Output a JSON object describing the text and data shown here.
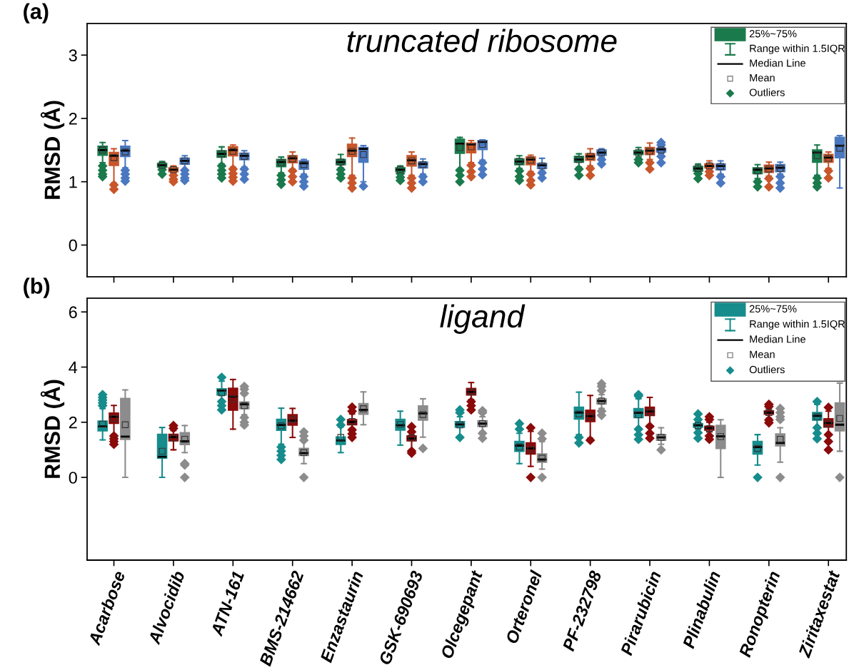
{
  "chart_data": [
    {
      "type": "box",
      "title": "(a)",
      "subtitle": "truncated ribosome",
      "ylabel": "RMSD (Å)",
      "categories": [
        null,
        null,
        null,
        null,
        null,
        null,
        null,
        null,
        null,
        null,
        null,
        null,
        null
      ],
      "ylim": [
        -0.5,
        3.5
      ],
      "yticks": [
        0,
        1,
        2,
        3
      ],
      "tick_labels": "y",
      "marker": "diamond",
      "annotations": [
        "25%~75%",
        "Range within 1.5IQR",
        "Median Line",
        "Mean",
        "Outliers"
      ],
      "series": [
        {
          "color": "#1a7a4c",
          "boxes": [
            {
              "low": 1.3,
              "q1": 1.42,
              "median": 1.5,
              "q3": 1.56,
              "high": 1.62,
              "mean": 1.5,
              "outliers": [
                1.25,
                1.18,
                1.12,
                1.08
              ]
            },
            {
              "low": 1.22,
              "q1": 1.23,
              "median": 1.26,
              "q3": 1.29,
              "high": 1.32,
              "mean": 1.26,
              "outliers": [
                1.19,
                1.12
              ]
            },
            {
              "low": 1.28,
              "q1": 1.39,
              "median": 1.44,
              "q3": 1.49,
              "high": 1.55,
              "mean": 1.44,
              "outliers": [
                1.25,
                1.18,
                1.12,
                1.06
              ]
            },
            {
              "low": 1.14,
              "q1": 1.24,
              "median": 1.31,
              "q3": 1.35,
              "high": 1.39,
              "mean": 1.3,
              "outliers": [
                1.1,
                1.03,
                0.96
              ]
            },
            {
              "low": 1.22,
              "q1": 1.27,
              "median": 1.31,
              "q3": 1.35,
              "high": 1.43,
              "mean": 1.31,
              "outliers": [
                1.19,
                1.12,
                1.06
              ]
            },
            {
              "low": 1.16,
              "q1": 1.16,
              "median": 1.19,
              "q3": 1.22,
              "high": 1.25,
              "mean": 1.19,
              "outliers": [
                1.13,
                1.07,
                1.02
              ]
            },
            {
              "low": 1.2,
              "q1": 1.45,
              "median": 1.6,
              "q3": 1.67,
              "high": 1.7,
              "mean": 1.54,
              "outliers": [
                1.18,
                1.1,
                1.0
              ]
            },
            {
              "low": 1.21,
              "q1": 1.27,
              "median": 1.32,
              "q3": 1.36,
              "high": 1.41,
              "mean": 1.32,
              "outliers": [
                1.17,
                1.08,
                1.02
              ]
            },
            {
              "low": 1.23,
              "q1": 1.31,
              "median": 1.35,
              "q3": 1.4,
              "high": 1.44,
              "mean": 1.35,
              "outliers": [
                1.2,
                1.1
              ]
            },
            {
              "low": 1.39,
              "q1": 1.43,
              "median": 1.46,
              "q3": 1.49,
              "high": 1.54,
              "mean": 1.46,
              "outliers": [
                1.35,
                1.3
              ]
            },
            {
              "low": 1.16,
              "q1": 1.17,
              "median": 1.21,
              "q3": 1.24,
              "high": 1.28,
              "mean": 1.21,
              "outliers": [
                1.13,
                1.05
              ]
            },
            {
              "low": 1.05,
              "q1": 1.13,
              "median": 1.19,
              "q3": 1.22,
              "high": 1.27,
              "mean": 1.17,
              "outliers": [
                1.0,
                0.92
              ]
            },
            {
              "low": 1.1,
              "q1": 1.31,
              "median": 1.46,
              "q3": 1.5,
              "high": 1.58,
              "mean": 1.41,
              "outliers": [
                1.06,
                0.98,
                0.92
              ]
            }
          ]
        },
        {
          "color": "#c8562a",
          "boxes": [
            {
              "low": 0.98,
              "q1": 1.26,
              "median": 1.41,
              "q3": 1.46,
              "high": 1.52,
              "mean": 1.38,
              "outliers": [
                0.95,
                0.88
              ]
            },
            {
              "low": 1.14,
              "q1": 1.16,
              "median": 1.19,
              "q3": 1.22,
              "high": 1.25,
              "mean": 1.19,
              "outliers": [
                1.1,
                1.04,
                1.0
              ]
            },
            {
              "low": 1.23,
              "q1": 1.41,
              "median": 1.5,
              "q3": 1.55,
              "high": 1.58,
              "mean": 1.48,
              "outliers": [
                1.2,
                1.13,
                1.07,
                1.01
              ]
            },
            {
              "low": 1.2,
              "q1": 1.3,
              "median": 1.37,
              "q3": 1.41,
              "high": 1.47,
              "mean": 1.36,
              "outliers": [
                1.17,
                1.08,
                1.0
              ]
            },
            {
              "low": 1.1,
              "q1": 1.4,
              "median": 1.49,
              "q3": 1.59,
              "high": 1.69,
              "mean": 1.48,
              "outliers": [
                1.06,
                0.98,
                0.9
              ]
            },
            {
              "low": 1.1,
              "q1": 1.25,
              "median": 1.34,
              "q3": 1.41,
              "high": 1.47,
              "mean": 1.33,
              "outliers": [
                1.06,
                0.98,
                0.9
              ]
            },
            {
              "low": 1.3,
              "q1": 1.46,
              "median": 1.59,
              "q3": 1.61,
              "high": 1.65,
              "mean": 1.55,
              "outliers": [
                1.26,
                1.16,
                1.08
              ]
            },
            {
              "low": 1.16,
              "q1": 1.27,
              "median": 1.35,
              "q3": 1.39,
              "high": 1.42,
              "mean": 1.34,
              "outliers": [
                1.12,
                1.02,
                0.95
              ]
            },
            {
              "low": 1.25,
              "q1": 1.34,
              "median": 1.4,
              "q3": 1.44,
              "high": 1.52,
              "mean": 1.4,
              "outliers": [
                1.21,
                1.1
              ]
            },
            {
              "low": 1.35,
              "q1": 1.43,
              "median": 1.49,
              "q3": 1.54,
              "high": 1.61,
              "mean": 1.48,
              "outliers": [
                1.3,
                1.2
              ]
            },
            {
              "low": 1.19,
              "q1": 1.22,
              "median": 1.25,
              "q3": 1.28,
              "high": 1.33,
              "mean": 1.25,
              "outliers": [
                1.16,
                1.1
              ]
            },
            {
              "low": 1.09,
              "q1": 1.15,
              "median": 1.21,
              "q3": 1.26,
              "high": 1.31,
              "mean": 1.2,
              "outliers": [
                1.05,
                0.92
              ]
            },
            {
              "low": 1.21,
              "q1": 1.31,
              "median": 1.38,
              "q3": 1.43,
              "high": 1.47,
              "mean": 1.37,
              "outliers": [
                1.17,
                1.06
              ]
            }
          ]
        },
        {
          "color": "#4a78c0",
          "boxes": [
            {
              "low": 1.22,
              "q1": 1.4,
              "median": 1.49,
              "q3": 1.56,
              "high": 1.65,
              "mean": 1.47,
              "outliers": [
                1.18,
                1.12,
                1.06,
                1.01
              ]
            },
            {
              "low": 1.2,
              "q1": 1.28,
              "median": 1.33,
              "q3": 1.37,
              "high": 1.41,
              "mean": 1.33,
              "outliers": [
                1.18,
                1.12,
                1.06,
                1.02
              ]
            },
            {
              "low": 1.23,
              "q1": 1.35,
              "median": 1.41,
              "q3": 1.45,
              "high": 1.49,
              "mean": 1.4,
              "outliers": [
                1.2,
                1.12,
                1.04
              ]
            },
            {
              "low": 1.12,
              "q1": 1.2,
              "median": 1.29,
              "q3": 1.33,
              "high": 1.35,
              "mean": 1.27,
              "outliers": [
                1.08,
                1.0,
                0.93
              ]
            },
            {
              "low": 1.0,
              "q1": 1.31,
              "median": 1.52,
              "q3": 1.54,
              "high": 1.57,
              "mean": 1.43,
              "outliers": [
                0.93
              ]
            },
            {
              "low": 1.12,
              "q1": 1.22,
              "median": 1.28,
              "q3": 1.31,
              "high": 1.36,
              "mean": 1.27,
              "outliers": [
                1.08,
                1.0
              ]
            },
            {
              "low": 1.34,
              "q1": 1.51,
              "median": 1.63,
              "q3": 1.65,
              "high": 1.66,
              "mean": 1.59,
              "outliers": [
                1.3,
                1.2,
                1.11
              ]
            },
            {
              "low": 1.17,
              "q1": 1.21,
              "median": 1.26,
              "q3": 1.29,
              "high": 1.37,
              "mean": 1.25,
              "outliers": [
                1.14,
                1.06
              ]
            },
            {
              "low": 1.39,
              "q1": 1.42,
              "median": 1.46,
              "q3": 1.5,
              "high": 1.52,
              "mean": 1.46,
              "outliers": [
                1.35,
                1.28
              ]
            },
            {
              "low": 1.44,
              "q1": 1.47,
              "median": 1.51,
              "q3": 1.53,
              "high": 1.55,
              "mean": 1.5,
              "outliers": [
                1.62,
                1.58,
                1.4,
                1.3
              ]
            },
            {
              "low": 1.12,
              "q1": 1.19,
              "median": 1.25,
              "q3": 1.28,
              "high": 1.33,
              "mean": 1.24,
              "outliers": [
                1.08,
                0.98
              ]
            },
            {
              "low": 1.12,
              "q1": 1.16,
              "median": 1.22,
              "q3": 1.27,
              "high": 1.31,
              "mean": 1.21,
              "outliers": [
                1.08,
                0.98,
                0.9
              ]
            },
            {
              "low": 0.9,
              "q1": 1.38,
              "median": 1.57,
              "q3": 1.7,
              "high": 1.73,
              "mean": 1.53
            }
          ]
        }
      ]
    },
    {
      "type": "box",
      "title": "(b)",
      "subtitle": "ligand",
      "ylabel": "RMSD (Å)",
      "categories": [
        "Acarbose",
        "Alvocidib",
        "ATN-161",
        "BMS-214662",
        "Enzastaurin",
        "GSK-690693",
        "Olcegepant",
        "Orteronel",
        "PF-232798",
        "Pirarubicin",
        "Plinabulin",
        "Ronopterin",
        "Ziritaxestat"
      ],
      "ylim": [
        -3,
        6.5
      ],
      "yticks": [
        0,
        2,
        4,
        6
      ],
      "marker": "diamond",
      "annotations": [
        "25%~75%",
        "Range within 1.5IQR",
        "Median Line",
        "Mean",
        "Outliers"
      ],
      "series": [
        {
          "color": "#168c8c",
          "boxes": [
            {
              "low": 1.36,
              "q1": 1.69,
              "median": 1.85,
              "q3": 2.04,
              "high": 2.49,
              "mean": 1.93,
              "outliers": [
                3.0,
                2.9,
                2.8,
                2.7,
                2.6
              ]
            },
            {
              "low": 0.0,
              "q1": 0.7,
              "median": 0.75,
              "q3": 1.56,
              "high": 1.81,
              "mean": 0.95
            },
            {
              "low": 2.78,
              "q1": 2.99,
              "median": 3.15,
              "q3": 3.21,
              "high": 3.49,
              "mean": 3.07,
              "outliers": [
                3.63,
                2.75,
                2.6,
                2.45
              ]
            },
            {
              "low": 1.2,
              "q1": 1.71,
              "median": 1.9,
              "q3": 2.1,
              "high": 2.51,
              "mean": 1.87,
              "outliers": [
                1.1,
                0.95,
                0.8,
                0.65
              ]
            },
            {
              "low": 0.9,
              "q1": 1.2,
              "median": 1.34,
              "q3": 1.46,
              "high": 1.83,
              "mean": 1.45,
              "outliers": [
                2.1,
                1.9
              ]
            },
            {
              "low": 1.17,
              "q1": 1.72,
              "median": 1.89,
              "q3": 2.1,
              "high": 2.4,
              "mean": 1.92
            },
            {
              "low": 1.49,
              "q1": 1.82,
              "median": 1.92,
              "q3": 2.02,
              "high": 2.2,
              "mean": 1.9,
              "outliers": [
                2.45,
                2.35,
                1.45
              ]
            },
            {
              "low": 0.5,
              "q1": 0.95,
              "median": 1.15,
              "q3": 1.3,
              "high": 1.6,
              "mean": 1.1,
              "outliers": [
                1.95,
                1.75
              ]
            },
            {
              "low": 1.55,
              "q1": 2.12,
              "median": 2.35,
              "q3": 2.54,
              "high": 3.09,
              "mean": 2.3,
              "outliers": [
                1.45,
                1.25
              ]
            },
            {
              "low": 1.79,
              "q1": 2.17,
              "median": 2.34,
              "q3": 2.49,
              "high": 2.85,
              "mean": 2.27,
              "outliers": [
                3.0,
                2.95,
                1.75,
                1.55,
                1.38
              ]
            },
            {
              "low": 1.75,
              "q1": 1.82,
              "median": 1.89,
              "q3": 1.95,
              "high": 2.0,
              "mean": 1.88,
              "outliers": [
                2.3,
                2.1,
                1.62,
                1.42
              ]
            },
            {
              "low": 0.45,
              "q1": 0.85,
              "median": 1.1,
              "q3": 1.3,
              "high": 1.55,
              "mean": 1.05,
              "outliers": [
                0.0
              ]
            },
            {
              "low": 1.6,
              "q1": 2.08,
              "median": 2.23,
              "q3": 2.35,
              "high": 2.65,
              "mean": 2.2,
              "outliers": [
                2.75,
                1.8,
                1.6,
                1.4
              ]
            }
          ]
        },
        {
          "color": "#8b0a0a",
          "boxes": [
            {
              "low": 1.56,
              "q1": 1.96,
              "median": 2.2,
              "q3": 2.33,
              "high": 2.61,
              "mean": 2.14,
              "outliers": [
                1.5,
                1.4,
                1.3,
                1.2
              ]
            },
            {
              "low": 1.0,
              "q1": 1.33,
              "median": 1.46,
              "q3": 1.56,
              "high": 1.7,
              "mean": 1.43,
              "outliers": [
                1.88,
                1.78
              ]
            },
            {
              "low": 1.75,
              "q1": 2.44,
              "median": 2.93,
              "q3": 3.23,
              "high": 3.55,
              "mean": 2.84
            },
            {
              "low": 1.45,
              "q1": 1.9,
              "median": 2.06,
              "q3": 2.27,
              "high": 2.5,
              "mean": 2.1
            },
            {
              "low": 1.78,
              "q1": 1.91,
              "median": 2.01,
              "q3": 2.09,
              "high": 2.3,
              "mean": 2.03,
              "outliers": [
                2.55,
                2.4,
                1.72,
                1.58,
                1.45
              ]
            },
            {
              "low": 1.0,
              "q1": 1.33,
              "median": 1.41,
              "q3": 1.5,
              "high": 1.7,
              "mean": 1.43,
              "outliers": [
                1.84,
                1.65,
                0.95,
                0.88
              ]
            },
            {
              "low": 2.82,
              "q1": 2.99,
              "median": 3.1,
              "q3": 3.22,
              "high": 3.44,
              "mean": 3.1,
              "outliers": [
                2.75,
                2.6,
                2.45
              ]
            },
            {
              "low": 0.4,
              "q1": 0.85,
              "median": 1.05,
              "q3": 1.25,
              "high": 1.67,
              "mean": 1.02,
              "outliers": [
                1.8,
                0.0
              ]
            },
            {
              "low": 1.42,
              "q1": 2.03,
              "median": 2.22,
              "q3": 2.43,
              "high": 2.97,
              "mean": 2.2,
              "outliers": [
                1.35
              ]
            },
            {
              "low": 1.89,
              "q1": 2.25,
              "median": 2.39,
              "q3": 2.54,
              "high": 2.9,
              "mean": 2.37,
              "outliers": [
                1.85,
                1.6,
                1.42
              ]
            },
            {
              "low": 1.65,
              "q1": 1.72,
              "median": 1.79,
              "q3": 1.85,
              "high": 2.0,
              "mean": 1.77,
              "outliers": [
                2.2,
                2.1,
                1.5,
                1.38
              ]
            },
            {
              "low": 2.15,
              "q1": 2.29,
              "median": 2.35,
              "q3": 2.41,
              "high": 2.5,
              "mean": 2.35,
              "outliers": [
                2.65,
                2.57,
                2.08,
                1.98
              ]
            },
            {
              "low": 1.35,
              "q1": 1.83,
              "median": 1.97,
              "q3": 2.12,
              "high": 2.4,
              "mean": 1.95,
              "outliers": [
                2.54,
                1.55,
                1.3,
                1.0
              ]
            }
          ]
        },
        {
          "color": "#8c8c8c",
          "boxes": [
            {
              "low": 0.0,
              "q1": 1.38,
              "median": 1.48,
              "q3": 2.86,
              "high": 3.17,
              "mean": 1.91
            },
            {
              "low": 0.9,
              "q1": 1.19,
              "median": 1.31,
              "q3": 1.62,
              "high": 1.88,
              "mean": 1.38,
              "outliers": [
                0.5,
                0.45,
                0.0
              ]
            },
            {
              "low": 2.27,
              "q1": 2.49,
              "median": 2.65,
              "q3": 2.73,
              "high": 2.99,
              "mean": 2.6,
              "outliers": [
                3.3,
                3.2,
                3.05,
                2.17,
                2.0,
                1.9
              ]
            },
            {
              "low": 0.5,
              "q1": 0.8,
              "median": 0.88,
              "q3": 1.05,
              "high": 1.3,
              "mean": 0.9,
              "outliers": [
                1.65,
                1.5,
                1.35,
                0.0
              ]
            },
            {
              "low": 1.91,
              "q1": 2.29,
              "median": 2.45,
              "q3": 2.67,
              "high": 3.1,
              "mean": 2.49
            },
            {
              "low": 1.46,
              "q1": 2.08,
              "median": 2.32,
              "q3": 2.59,
              "high": 2.85,
              "mean": 2.28,
              "outliers": [
                1.05
              ]
            },
            {
              "low": 1.65,
              "q1": 1.85,
              "median": 1.95,
              "q3": 2.05,
              "high": 2.2,
              "mean": 1.95,
              "outliers": [
                2.42,
                2.35,
                1.6,
                1.42
              ]
            },
            {
              "low": 0.3,
              "q1": 0.55,
              "median": 0.65,
              "q3": 0.85,
              "high": 1.3,
              "mean": 0.7,
              "outliers": [
                1.6,
                1.4,
                0.0
              ]
            },
            {
              "low": 2.5,
              "q1": 2.67,
              "median": 2.77,
              "q3": 2.85,
              "high": 3.0,
              "mean": 2.77,
              "outliers": [
                3.4,
                3.3,
                3.15,
                2.4,
                2.25
              ]
            },
            {
              "low": 1.2,
              "q1": 1.35,
              "median": 1.45,
              "q3": 1.55,
              "high": 1.8,
              "mean": 1.45,
              "outliers": [
                1.0
              ]
            },
            {
              "low": 0.0,
              "q1": 1.05,
              "median": 1.49,
              "q3": 1.88,
              "high": 2.09,
              "mean": 1.48
            },
            {
              "low": 0.55,
              "q1": 1.15,
              "median": 1.25,
              "q3": 1.57,
              "high": 1.8,
              "mean": 1.38,
              "outliers": [
                2.5,
                2.35,
                2.2,
                2.1,
                0.0
              ]
            },
            {
              "low": 0.95,
              "q1": 1.69,
              "median": 1.91,
              "q3": 2.7,
              "high": 3.42,
              "mean": 2.14,
              "outliers": [
                0.0
              ]
            }
          ]
        }
      ]
    }
  ]
}
